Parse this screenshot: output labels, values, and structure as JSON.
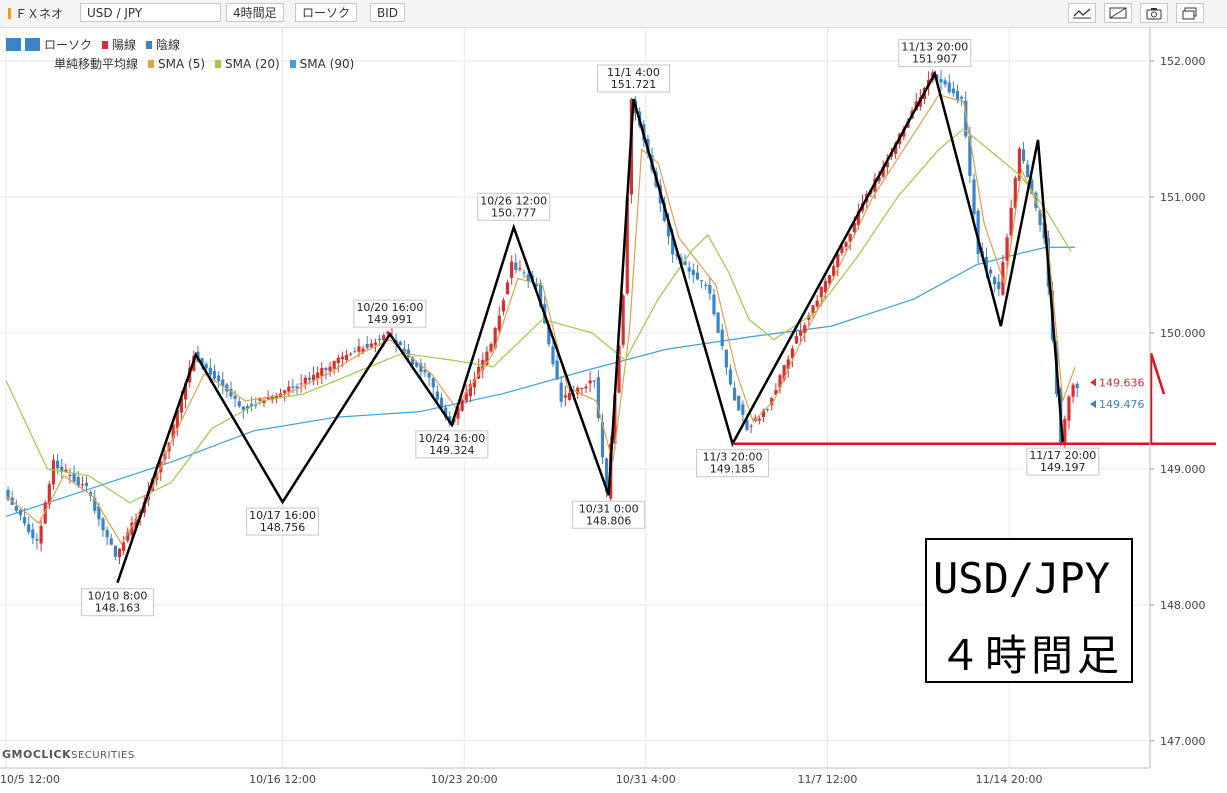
{
  "toolbar": {
    "brand": "ＦＸネオ",
    "symbol": "USD / JPY",
    "timeframe": "4時間足",
    "chart_style": "ローソク",
    "price_type": "BID"
  },
  "legend": {
    "candle_label": "ローソク",
    "up_label": "陽線",
    "down_label": "陰線",
    "sma_label": "単純移動平均線",
    "sma5": "SMA (5)",
    "sma20": "SMA (20)",
    "sma90": "SMA (90)"
  },
  "logo": {
    "main": "GMOCLICK",
    "sub": "SECURITIES"
  },
  "title_box": {
    "line1": "USD/JPY",
    "line2": "４時間足"
  },
  "colors": {
    "up": "#d83030",
    "down": "#3a84c8",
    "sma5": "#e0a050",
    "sma20": "#9ccc44",
    "sma90": "#40a0d8",
    "support": "#e01020"
  },
  "chart_data": {
    "type": "candlestick",
    "ylim": [
      146.8,
      152.25
    ],
    "y_ticks": [
      "152.000",
      "151.000",
      "150.000",
      "149.000",
      "148.000",
      "147.000"
    ],
    "x_ticks": [
      "10/5 12:00",
      "10/16 12:00",
      "10/23 20:00",
      "10/31 4:00",
      "11/7 12:00",
      "11/14 20:00"
    ],
    "x_ticks_bar": [
      0,
      67,
      111,
      155,
      199,
      243
    ],
    "bar_count": 276,
    "anchors": [
      [
        0,
        148.85
      ],
      [
        8,
        148.45
      ],
      [
        12,
        149.05
      ],
      [
        20,
        148.85
      ],
      [
        27,
        148.35
      ],
      [
        33,
        148.7
      ],
      [
        40,
        149.2
      ],
      [
        46,
        149.84
      ],
      [
        58,
        149.45
      ],
      [
        67,
        149.55
      ],
      [
        76,
        149.7
      ],
      [
        84,
        149.85
      ],
      [
        93,
        149.99
      ],
      [
        103,
        149.65
      ],
      [
        108,
        149.324
      ],
      [
        118,
        149.9
      ],
      [
        123,
        150.5
      ],
      [
        129,
        150.35
      ],
      [
        135,
        149.5
      ],
      [
        143,
        149.65
      ],
      [
        146,
        148.806
      ],
      [
        150,
        150.3
      ],
      [
        152,
        151.721
      ],
      [
        157,
        151.2
      ],
      [
        162,
        150.6
      ],
      [
        171,
        150.3
      ],
      [
        176,
        149.6
      ],
      [
        180,
        149.3
      ],
      [
        185,
        149.45
      ],
      [
        191,
        149.9
      ],
      [
        197,
        150.25
      ],
      [
        209,
        151.0
      ],
      [
        225,
        151.907
      ],
      [
        232,
        151.7
      ],
      [
        236,
        150.6
      ],
      [
        241,
        150.3
      ],
      [
        246,
        151.35
      ],
      [
        252,
        150.7
      ],
      [
        256,
        149.197
      ],
      [
        258,
        149.55
      ],
      [
        259,
        149.6
      ]
    ],
    "sma5": [
      [
        0,
        148.8
      ],
      [
        8,
        148.6
      ],
      [
        14,
        148.95
      ],
      [
        21,
        148.8
      ],
      [
        28,
        148.45
      ],
      [
        34,
        148.75
      ],
      [
        40,
        149.2
      ],
      [
        48,
        149.7
      ],
      [
        58,
        149.5
      ],
      [
        68,
        149.55
      ],
      [
        78,
        149.7
      ],
      [
        86,
        149.85
      ],
      [
        93,
        149.95
      ],
      [
        103,
        149.7
      ],
      [
        109,
        149.45
      ],
      [
        118,
        149.85
      ],
      [
        124,
        150.4
      ],
      [
        130,
        150.35
      ],
      [
        136,
        149.6
      ],
      [
        143,
        149.5
      ],
      [
        147,
        149.05
      ],
      [
        151,
        150.0
      ],
      [
        154,
        151.35
      ],
      [
        158,
        151.25
      ],
      [
        163,
        150.7
      ],
      [
        172,
        150.35
      ],
      [
        177,
        149.7
      ],
      [
        181,
        149.35
      ],
      [
        186,
        149.5
      ],
      [
        192,
        149.9
      ],
      [
        198,
        150.25
      ],
      [
        210,
        151.0
      ],
      [
        226,
        151.75
      ],
      [
        232,
        151.7
      ],
      [
        237,
        150.8
      ],
      [
        242,
        150.35
      ],
      [
        246,
        151.2
      ],
      [
        252,
        150.8
      ],
      [
        256,
        149.5
      ],
      [
        259,
        149.75
      ]
    ],
    "sma20": [
      [
        0,
        149.65
      ],
      [
        10,
        149.0
      ],
      [
        20,
        148.95
      ],
      [
        30,
        148.75
      ],
      [
        40,
        148.9
      ],
      [
        50,
        149.3
      ],
      [
        62,
        149.5
      ],
      [
        72,
        149.55
      ],
      [
        84,
        149.7
      ],
      [
        96,
        149.85
      ],
      [
        108,
        149.8
      ],
      [
        118,
        149.75
      ],
      [
        130,
        150.1
      ],
      [
        142,
        150.0
      ],
      [
        150,
        149.8
      ],
      [
        158,
        150.25
      ],
      [
        166,
        150.6
      ],
      [
        170,
        150.72
      ],
      [
        175,
        150.45
      ],
      [
        180,
        150.1
      ],
      [
        186,
        149.95
      ],
      [
        196,
        150.15
      ],
      [
        206,
        150.55
      ],
      [
        216,
        151.0
      ],
      [
        226,
        151.35
      ],
      [
        232,
        151.5
      ],
      [
        238,
        151.35
      ],
      [
        246,
        151.15
      ],
      [
        252,
        150.9
      ],
      [
        258,
        150.6
      ]
    ],
    "sma90": [
      [
        0,
        148.65
      ],
      [
        20,
        148.85
      ],
      [
        40,
        149.05
      ],
      [
        60,
        149.28
      ],
      [
        80,
        149.38
      ],
      [
        100,
        149.42
      ],
      [
        120,
        149.55
      ],
      [
        140,
        149.72
      ],
      [
        160,
        149.88
      ],
      [
        180,
        149.97
      ],
      [
        200,
        150.05
      ],
      [
        220,
        150.25
      ],
      [
        235,
        150.5
      ],
      [
        245,
        150.58
      ],
      [
        252,
        150.63
      ],
      [
        259,
        150.63
      ]
    ],
    "zigzag": [
      {
        "bar": 27,
        "price": 148.163,
        "label_time": "10/10 8:00",
        "label_price": "148.163",
        "pos": "below"
      },
      {
        "bar": 46,
        "price": 149.84
      },
      {
        "bar": 67,
        "price": 148.756,
        "label_time": "10/17 16:00",
        "label_price": "148.756",
        "pos": "below"
      },
      {
        "bar": 93,
        "price": 149.991,
        "label_time": "10/20 16:00",
        "label_price": "149.991",
        "pos": "above"
      },
      {
        "bar": 108,
        "price": 149.324,
        "label_time": "10/24 16:00",
        "label_price": "149.324",
        "pos": "below"
      },
      {
        "bar": 123,
        "price": 150.777,
        "label_time": "10/26 12:00",
        "label_price": "150.777",
        "pos": "above"
      },
      {
        "bar": 146,
        "price": 148.806,
        "label_time": "10/31 0:00",
        "label_price": "148.806",
        "pos": "below"
      },
      {
        "bar": 152,
        "price": 151.721,
        "label_time": "11/1 4:00",
        "label_price": "151.721",
        "pos": "above"
      },
      {
        "bar": 176,
        "price": 149.185,
        "label_time": "11/3 20:00",
        "label_price": "149.185",
        "pos": "below"
      },
      {
        "bar": 225,
        "price": 151.907,
        "label_time": "11/13 20:00",
        "label_price": "151.907",
        "pos": "above"
      },
      {
        "bar": 241,
        "price": 150.05
      },
      {
        "bar": 250,
        "price": 151.42
      },
      {
        "bar": 256,
        "price": 149.197,
        "label_time": "11/17 20:00",
        "label_price": "149.197",
        "pos": "below"
      }
    ],
    "support_line": {
      "price": 149.185,
      "from_bar": 176
    },
    "price_tags": [
      {
        "label": "149.636",
        "price": 149.636,
        "color": "#d83030"
      },
      {
        "label": "149.476",
        "price": 149.476,
        "color": "#3a84c8"
      }
    ]
  }
}
